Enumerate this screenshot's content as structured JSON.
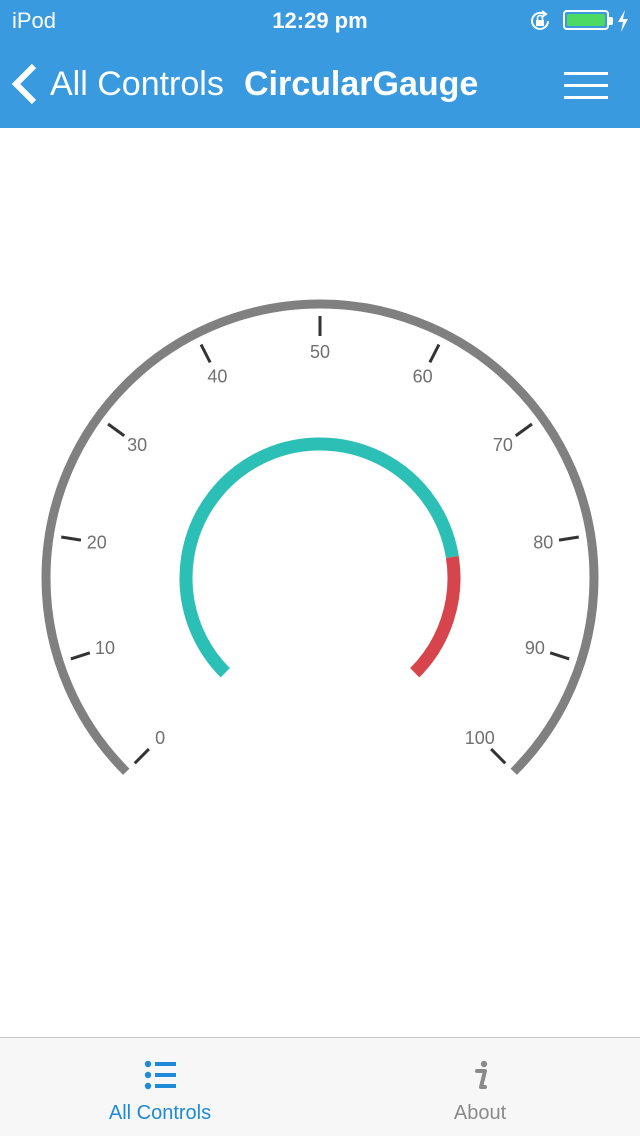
{
  "status_bar": {
    "carrier": "iPod",
    "time": "12:29 pm",
    "battery_level": 1.0
  },
  "nav": {
    "back_label": "All Controls",
    "title": "CircularGauge",
    "back_icon": "chevron-left-icon",
    "menu_icon": "hamburger-menu-icon"
  },
  "gauge": {
    "scale_min": 0,
    "scale_max": 100,
    "major_interval": 10,
    "tick_labels": [
      "0",
      "10",
      "20",
      "30",
      "40",
      "50",
      "60",
      "70",
      "80",
      "90",
      "100"
    ],
    "ranges": [
      {
        "start": 0,
        "end": 80,
        "color": "#2bbfb5"
      },
      {
        "start": 80,
        "end": 100,
        "color": "#d6454b"
      }
    ],
    "colors": {
      "rim": "#808080",
      "ticks": "#333333",
      "labels": "#707070"
    }
  },
  "tabs": [
    {
      "label": "All Controls",
      "icon": "list-icon",
      "active": true
    },
    {
      "label": "About",
      "icon": "info-icon",
      "active": false
    }
  ],
  "colors": {
    "accent": "#3a9ae0",
    "tab_active": "#1e8ad8",
    "tab_inactive": "#8a8a8a"
  }
}
